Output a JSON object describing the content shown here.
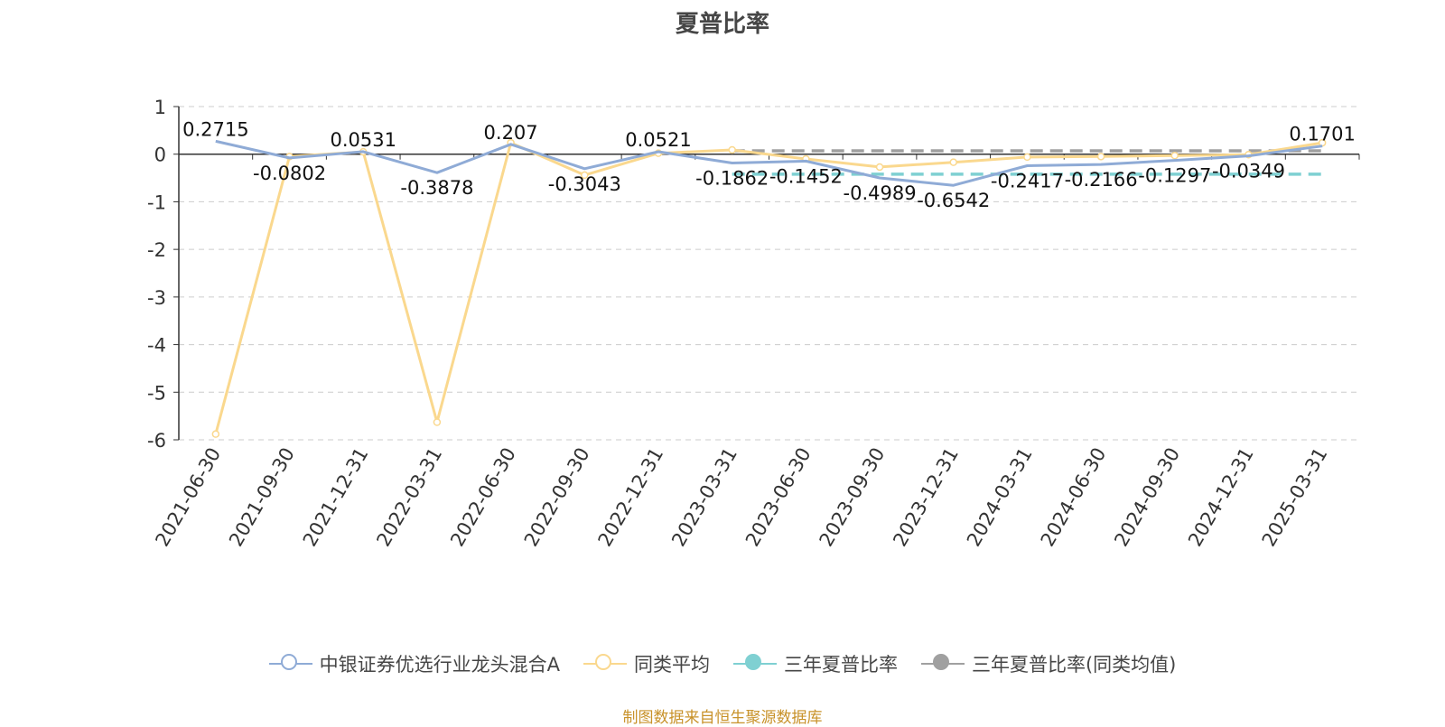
{
  "title": "夏普比率",
  "source": "制图数据来自恒生聚源数据库",
  "colors": {
    "fund": "#8fabd6",
    "peer": "#fad88e",
    "three_year": "#7fd0d2",
    "three_year_peer": "#a0a0a0",
    "grid": "#cccccc",
    "axis": "#333333"
  },
  "legend": [
    {
      "label": "中银证券优选行业龙头混合A",
      "icon": "hollow-circle-icon",
      "color": "#8fabd6"
    },
    {
      "label": "同类平均",
      "icon": "hollow-circle-icon",
      "color": "#fad88e"
    },
    {
      "label": "三年夏普比率",
      "icon": "filled-circle-icon",
      "color": "#7fd0d2"
    },
    {
      "label": "三年夏普比率(同类均值)",
      "icon": "filled-circle-icon",
      "color": "#a0a0a0"
    }
  ],
  "chart_data": {
    "type": "line",
    "title": "夏普比率",
    "categories": [
      "2021-06-30",
      "2021-09-30",
      "2021-12-31",
      "2022-03-31",
      "2022-06-30",
      "2022-09-30",
      "2022-12-31",
      "2023-03-31",
      "2023-06-30",
      "2023-09-30",
      "2023-12-31",
      "2024-03-31",
      "2024-06-30",
      "2024-09-30",
      "2024-12-31",
      "2025-03-31"
    ],
    "ylim": [
      -6,
      1
    ],
    "yticks": [
      1,
      0,
      -1,
      -2,
      -3,
      -4,
      -5,
      -6
    ],
    "grid": true,
    "legend_position": "bottom",
    "series": [
      {
        "name": "中银证券优选行业龙头混合A",
        "values": [
          0.2715,
          -0.0802,
          0.0531,
          -0.3878,
          0.207,
          -0.3043,
          0.0521,
          -0.1862,
          -0.1452,
          -0.4989,
          -0.6542,
          -0.2417,
          -0.2166,
          -0.1297,
          -0.0349,
          0.1701
        ],
        "labels": [
          "0.2715",
          "-0.0802",
          "0.0531",
          "-0.3878",
          "0.207",
          "-0.3043",
          "0.0521",
          "-0.1862",
          "-0.1452",
          "-0.4989",
          "-0.6542",
          "-0.2417",
          "-0.2166",
          "-0.1297",
          "-0.0349",
          "0.1701"
        ]
      },
      {
        "name": "同类平均",
        "values": [
          -5.88,
          -0.05,
          0.05,
          -5.63,
          0.24,
          -0.44,
          0.02,
          0.09,
          -0.1,
          -0.27,
          -0.17,
          -0.06,
          -0.05,
          -0.03,
          -0.01,
          0.24
        ]
      },
      {
        "name": "三年夏普比率",
        "values": [
          null,
          null,
          null,
          null,
          null,
          null,
          null,
          -0.42,
          -0.42,
          -0.42,
          -0.42,
          -0.42,
          -0.42,
          -0.42,
          -0.42,
          -0.42
        ]
      },
      {
        "name": "三年夏普比率(同类均值)",
        "values": [
          null,
          null,
          null,
          null,
          null,
          null,
          null,
          0.07,
          0.07,
          0.07,
          0.07,
          0.07,
          0.07,
          0.07,
          0.07,
          0.07
        ]
      }
    ]
  }
}
